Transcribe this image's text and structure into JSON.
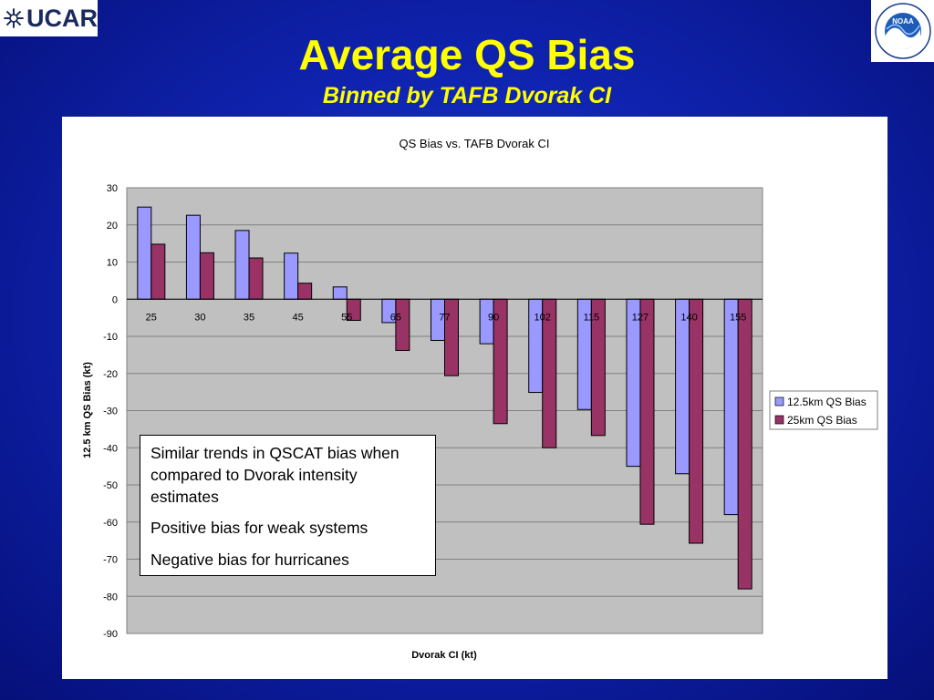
{
  "slide": {
    "title": "Average QS Bias",
    "subtitle": "Binned by TAFB Dvorak CI",
    "logos": {
      "left": {
        "icon": "ucar-star-icon",
        "text": "UCAR"
      },
      "right": {
        "icon": "noaa-seal-icon",
        "text": "NOAA"
      }
    },
    "colors": {
      "background": "#1023b8",
      "title": "#ffff00"
    }
  },
  "callout": {
    "lines": [
      "Similar trends in QSCAT bias when compared to Dvorak intensity estimates",
      "Positive bias for weak systems",
      "Negative bias for hurricanes"
    ]
  },
  "chart_data": {
    "type": "bar",
    "title": "QS Bias vs. TAFB Dvorak CI",
    "xlabel": "Dvorak CI (kt)",
    "ylabel": "12.5 km QS Bias (kt)",
    "ylim": [
      -90,
      30
    ],
    "yticks": [
      30,
      20,
      10,
      0,
      -10,
      -20,
      -30,
      -40,
      -50,
      -60,
      -70,
      -80,
      -90
    ],
    "grid": true,
    "legend_position": "right",
    "categories": [
      "25",
      "30",
      "35",
      "45",
      "55",
      "65",
      "77",
      "90",
      "102",
      "115",
      "127",
      "140",
      "155"
    ],
    "series": [
      {
        "name": "12.5km QS Bias",
        "color": "#9999ff",
        "values": [
          24.8,
          22.6,
          18.5,
          12.4,
          3.3,
          -6.3,
          -11.1,
          -12.0,
          -25.1,
          -29.7,
          -45.0,
          -47.0,
          -58.0
        ]
      },
      {
        "name": "25km QS Bias",
        "color": "#993366",
        "values": [
          14.8,
          12.5,
          11.1,
          4.3,
          -5.7,
          -13.8,
          -20.6,
          -33.5,
          -40.0,
          -36.7,
          -60.6,
          -65.7,
          -78.0
        ]
      }
    ]
  }
}
